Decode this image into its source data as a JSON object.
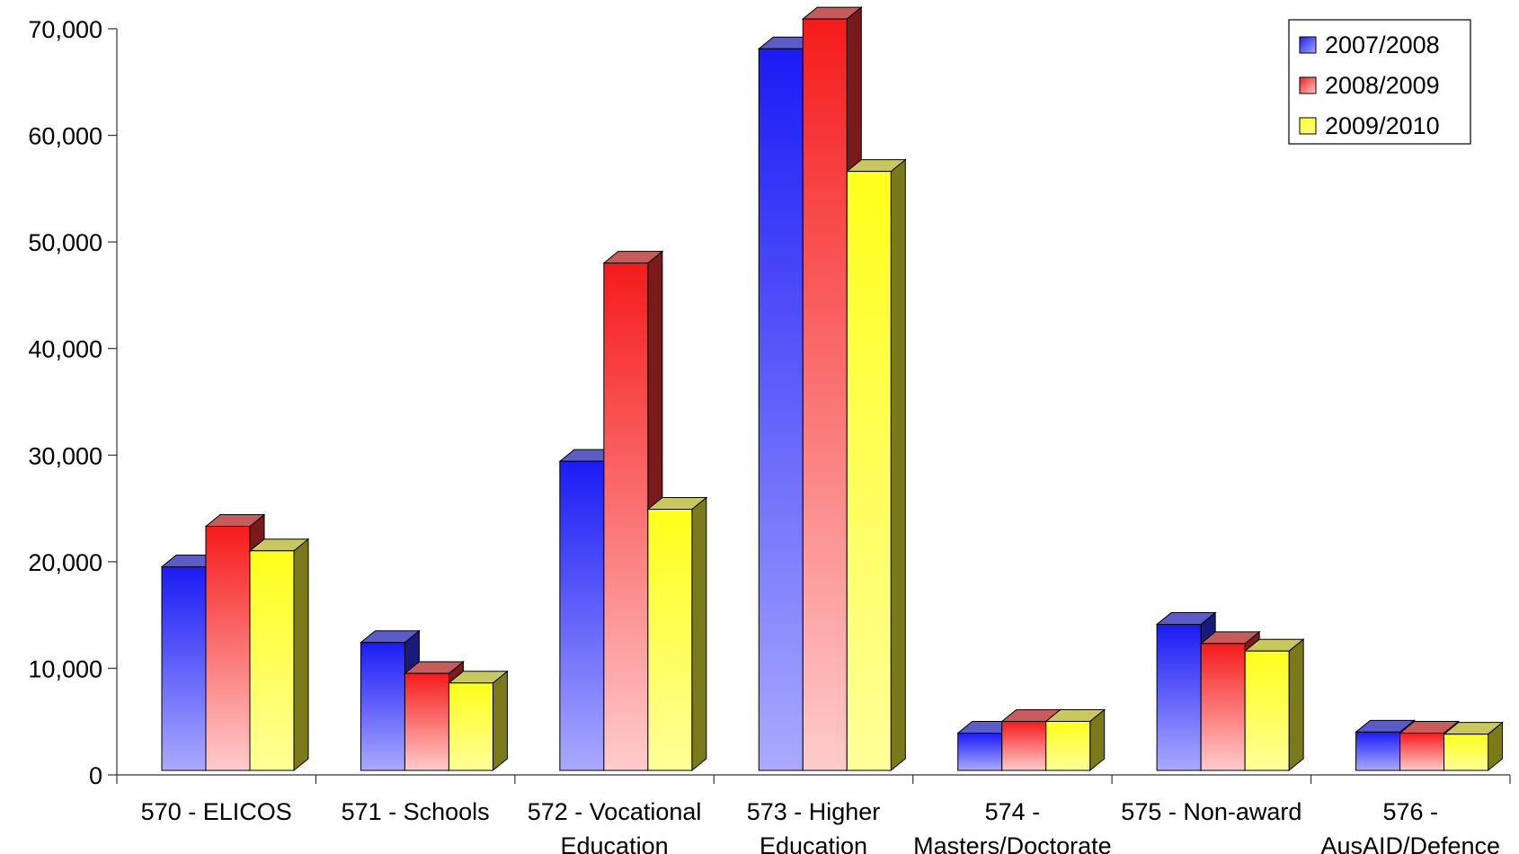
{
  "chart_data": {
    "type": "bar",
    "title": "",
    "xlabel": "",
    "ylabel": "",
    "ylim": [
      0,
      70000
    ],
    "yticks": [
      0,
      10000,
      20000,
      30000,
      40000,
      50000,
      60000,
      70000
    ],
    "ytick_labels": [
      "0",
      "10,000",
      "20,000",
      "30,000",
      "40,000",
      "50,000",
      "60,000",
      "70,000"
    ],
    "grid": false,
    "legend_position": "top-right",
    "categories": [
      [
        "570 - ELICOS"
      ],
      [
        "571 - Schools"
      ],
      [
        "572 - Vocational",
        "Education"
      ],
      [
        "573 - Higher",
        "Education"
      ],
      [
        "574 -",
        "Masters/Doctorate"
      ],
      [
        "575 - Non-award"
      ],
      [
        "576 -",
        "AusAID/Defence"
      ]
    ],
    "series": [
      {
        "name": "2007/2008",
        "values": [
          19100,
          12000,
          29000,
          67700,
          3500,
          13700,
          3600
        ],
        "colors": {
          "top": "#1b1bf5",
          "bottom": "#aaaaff",
          "side": "#1a1a7a",
          "cap": "#5c5cc8"
        }
      },
      {
        "name": "2008/2009",
        "values": [
          22900,
          9100,
          47600,
          70500,
          4600,
          11900,
          3500
        ],
        "colors": {
          "top": "#f51b1b",
          "bottom": "#ffcccc",
          "side": "#7a1a1a",
          "cap": "#c85c5c"
        }
      },
      {
        "name": "2009/2010",
        "values": [
          20600,
          8200,
          24500,
          56200,
          4600,
          11200,
          3400
        ],
        "colors": {
          "top": "#ffff1b",
          "bottom": "#ffff99",
          "side": "#7a7a1a",
          "cap": "#c8c85c"
        }
      }
    ]
  }
}
